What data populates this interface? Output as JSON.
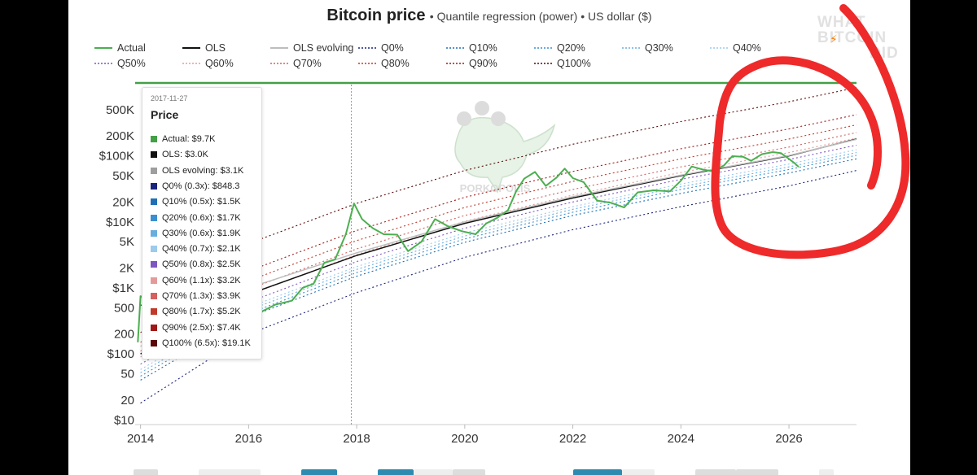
{
  "title": "Bitcoin price",
  "subtitle": "Quantile regression (power) • US dollar ($)",
  "bolt_icon": "⚡",
  "watermark_corner": [
    "WHAT",
    "BITCOIN",
    "DID"
  ],
  "watermark_center": "PORKOPOLIS",
  "colors": {
    "actual": "#4caf50",
    "ols": "#111111",
    "ols_evolving": "#bdbdbd",
    "annotation": "#ee2a2a",
    "header_bar": "#43a047"
  },
  "legend": [
    {
      "label": "Actual",
      "color": "#4caf50",
      "dash": "solid"
    },
    {
      "label": "OLS",
      "color": "#111111",
      "dash": "solid"
    },
    {
      "label": "OLS evolving",
      "color": "#bdbdbd",
      "dash": "solid"
    },
    {
      "label": "Q0%",
      "color": "#1a237e",
      "dash": "dotted"
    },
    {
      "label": "Q10%",
      "color": "#1e6fb5",
      "dash": "dotted"
    },
    {
      "label": "Q20%",
      "color": "#3a8fd0",
      "dash": "dotted"
    },
    {
      "label": "Q30%",
      "color": "#6aaee0",
      "dash": "dotted"
    },
    {
      "label": "Q40%",
      "color": "#9ccbec",
      "dash": "dotted"
    },
    {
      "label": "Q50%",
      "color": "#7e57c2",
      "dash": "dotted"
    },
    {
      "label": "Q60%",
      "color": "#e59a9a",
      "dash": "dotted"
    },
    {
      "label": "Q70%",
      "color": "#d46060",
      "dash": "dotted"
    },
    {
      "label": "Q80%",
      "color": "#c0392b",
      "dash": "dotted"
    },
    {
      "label": "Q90%",
      "color": "#a01818",
      "dash": "dotted"
    },
    {
      "label": "Q100%",
      "color": "#5a0808",
      "dash": "dotted"
    }
  ],
  "tooltip": {
    "date": "2017-11-27",
    "heading": "Price",
    "rows": [
      {
        "label": "Actual: $9.7K",
        "color": "#43a047"
      },
      {
        "label": "OLS: $3.0K",
        "color": "#111111"
      },
      {
        "label": "OLS evolving: $3.1K",
        "color": "#9e9e9e"
      },
      {
        "label": "Q0% (0.3x): $848.3",
        "color": "#1a237e"
      },
      {
        "label": "Q10% (0.5x): $1.5K",
        "color": "#1e6fb5"
      },
      {
        "label": "Q20% (0.6x): $1.7K",
        "color": "#3a8fd0"
      },
      {
        "label": "Q30% (0.6x): $1.9K",
        "color": "#6aaee0"
      },
      {
        "label": "Q40% (0.7x): $2.1K",
        "color": "#9ccbec"
      },
      {
        "label": "Q50% (0.8x): $2.5K",
        "color": "#7e57c2"
      },
      {
        "label": "Q60% (1.1x): $3.2K",
        "color": "#e59a9a"
      },
      {
        "label": "Q70% (1.3x): $3.9K",
        "color": "#d46060"
      },
      {
        "label": "Q80% (1.7x): $5.2K",
        "color": "#c0392b"
      },
      {
        "label": "Q90% (2.5x): $7.4K",
        "color": "#a01818"
      },
      {
        "label": "Q100% (6.5x): $19.1K",
        "color": "#5a0808"
      }
    ]
  },
  "chart_data": {
    "type": "line",
    "title": "Bitcoin price",
    "subtitle": "Quantile regression (power) • US dollar ($)",
    "xlabel": "",
    "ylabel": "",
    "y_scale": "log",
    "xlim": [
      2013.9,
      2027.25
    ],
    "ylim": [
      8.5,
      1200000
    ],
    "x_ticks": [
      2014,
      2016,
      2018,
      2020,
      2022,
      2024,
      2026
    ],
    "x_tick_labels": [
      "2014",
      "2016",
      "2018",
      "2020",
      "2022",
      "2024",
      "2026"
    ],
    "y_ticks": [
      10,
      20,
      50,
      100,
      200,
      500,
      1000,
      2000,
      5000,
      10000,
      20000,
      50000,
      100000,
      200000,
      500000
    ],
    "y_tick_labels": [
      "$10",
      "20",
      "50",
      "$100",
      "200",
      "500",
      "$1K",
      "2K",
      "5K",
      "$10K",
      "20K",
      "50K",
      "$100K",
      "200K",
      "500K"
    ],
    "grid": false,
    "legend_position": "top",
    "crosshair_x": 2017.9,
    "series": [
      {
        "name": "Actual",
        "style": "solid",
        "x": [
          2013.95,
          2014.0,
          2014.2,
          2014.5,
          2014.8,
          2015.0,
          2015.3,
          2015.6,
          2015.9,
          2016.2,
          2016.5,
          2016.8,
          2017.0,
          2017.2,
          2017.4,
          2017.6,
          2017.8,
          2017.95,
          2018.1,
          2018.3,
          2018.5,
          2018.75,
          2018.95,
          2019.2,
          2019.45,
          2019.7,
          2019.95,
          2020.2,
          2020.4,
          2020.6,
          2020.8,
          2020.95,
          2021.1,
          2021.3,
          2021.5,
          2021.7,
          2021.85,
          2022.0,
          2022.2,
          2022.45,
          2022.7,
          2022.95,
          2023.2,
          2023.5,
          2023.8,
          2024.0,
          2024.2,
          2024.4,
          2024.6,
          2024.8,
          2024.95,
          2025.15,
          2025.3,
          2025.5,
          2025.7,
          2025.85,
          2026.0,
          2026.1,
          2026.18
        ],
        "y": [
          150,
          750,
          620,
          520,
          390,
          280,
          260,
          235,
          380,
          420,
          560,
          640,
          1000,
          1150,
          2400,
          2700,
          6500,
          19000,
          11000,
          8000,
          6500,
          6400,
          3600,
          5000,
          11000,
          8500,
          7200,
          6500,
          9500,
          11500,
          15000,
          29000,
          45000,
          57000,
          35000,
          47000,
          64000,
          46000,
          40000,
          21000,
          19500,
          16500,
          28000,
          30000,
          29000,
          42000,
          69000,
          62000,
          58000,
          72000,
          99000,
          97000,
          84000,
          106000,
          114000,
          110000,
          90000,
          78000,
          68000
        ]
      },
      {
        "name": "OLS",
        "style": "solid",
        "x": [
          2014.0,
          2016.0,
          2018.0,
          2020.0,
          2022.0,
          2024.0,
          2026.0,
          2027.25
        ],
        "y": [
          100,
          800,
          3100,
          9500,
          23000,
          50000,
          100000,
          180000
        ]
      },
      {
        "name": "OLS evolving",
        "style": "solid",
        "x": [
          2014.0,
          2016.0,
          2018.0,
          2020.0,
          2022.0,
          2024.0,
          2026.0,
          2027.25
        ],
        "y": [
          130,
          1000,
          3400,
          10000,
          24000,
          51000,
          101000,
          178000
        ]
      },
      {
        "name": "Q0%",
        "style": "dotted",
        "x": [
          2014.0,
          2016.0,
          2018.0,
          2020.0,
          2022.0,
          2024.0,
          2026.0,
          2027.25
        ],
        "y": [
          18,
          200,
          850,
          2900,
          7600,
          17000,
          35000,
          60000
        ]
      },
      {
        "name": "Q10%",
        "style": "dotted",
        "x": [
          2014.0,
          2016.0,
          2018.0,
          2020.0,
          2022.0,
          2024.0,
          2026.0,
          2027.25
        ],
        "y": [
          40,
          360,
          1500,
          4900,
          12500,
          27000,
          55000,
          90000
        ]
      },
      {
        "name": "Q20%",
        "style": "dotted",
        "x": [
          2014.0,
          2016.0,
          2018.0,
          2020.0,
          2022.0,
          2024.0,
          2026.0,
          2027.25
        ],
        "y": [
          46,
          410,
          1700,
          5500,
          14000,
          31000,
          62000,
          102000
        ]
      },
      {
        "name": "Q30%",
        "style": "dotted",
        "x": [
          2014.0,
          2016.0,
          2018.0,
          2020.0,
          2022.0,
          2024.0,
          2026.0,
          2027.25
        ],
        "y": [
          52,
          460,
          1900,
          6100,
          15500,
          34000,
          68000,
          112000
        ]
      },
      {
        "name": "Q40%",
        "style": "dotted",
        "x": [
          2014.0,
          2016.0,
          2018.0,
          2020.0,
          2022.0,
          2024.0,
          2026.0,
          2027.25
        ],
        "y": [
          58,
          510,
          2100,
          6800,
          17000,
          37500,
          75000,
          124000
        ]
      },
      {
        "name": "Q50%",
        "style": "dotted",
        "x": [
          2014.0,
          2016.0,
          2018.0,
          2020.0,
          2022.0,
          2024.0,
          2026.0,
          2027.25
        ],
        "y": [
          70,
          610,
          2500,
          8000,
          20000,
          44000,
          88000,
          145000
        ]
      },
      {
        "name": "Q60%",
        "style": "dotted",
        "x": [
          2014.0,
          2016.0,
          2018.0,
          2020.0,
          2022.0,
          2024.0,
          2026.0,
          2027.25
        ],
        "y": [
          90,
          780,
          3200,
          10200,
          25500,
          56000,
          112000,
          185000
        ]
      },
      {
        "name": "Q70%",
        "style": "dotted",
        "x": [
          2014.0,
          2016.0,
          2018.0,
          2020.0,
          2022.0,
          2024.0,
          2026.0,
          2027.25
        ],
        "y": [
          110,
          950,
          3900,
          12500,
          31000,
          68000,
          136000,
          225000
        ]
      },
      {
        "name": "Q80%",
        "style": "dotted",
        "x": [
          2014.0,
          2016.0,
          2018.0,
          2020.0,
          2022.0,
          2024.0,
          2026.0,
          2027.25
        ],
        "y": [
          150,
          1280,
          5200,
          16500,
          41000,
          90000,
          180000,
          295000
        ]
      },
      {
        "name": "Q90%",
        "style": "dotted",
        "x": [
          2014.0,
          2016.0,
          2018.0,
          2020.0,
          2022.0,
          2024.0,
          2026.0,
          2027.25
        ],
        "y": [
          210,
          1800,
          7400,
          23500,
          58000,
          128000,
          256000,
          420000
        ]
      },
      {
        "name": "Q100%",
        "style": "dotted",
        "x": [
          2014.0,
          2016.0,
          2018.0,
          2020.0,
          2022.0,
          2024.0,
          2026.0,
          2027.25
        ],
        "y": [
          540,
          4700,
          19100,
          60000,
          150000,
          330000,
          660000,
          1080000
        ]
      }
    ]
  }
}
